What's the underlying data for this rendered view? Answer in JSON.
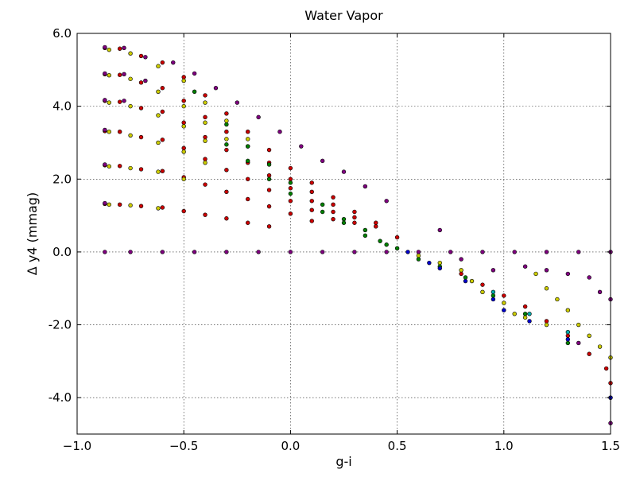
{
  "chart_data": {
    "type": "scatter",
    "title": "Water Vapor",
    "xlabel": "g-i",
    "ylabel": "Δ y4 (mmag)",
    "xlim": [
      -1.0,
      1.5
    ],
    "ylim": [
      -5.0,
      6.0
    ],
    "x_ticks": [
      -1.0,
      -0.5,
      0.0,
      0.5,
      1.0,
      1.5
    ],
    "x_tick_labels": [
      "−1.0",
      "−0.5",
      "0.0",
      "0.5",
      "1.0",
      "1.5"
    ],
    "y_ticks": [
      -4.0,
      -2.0,
      0.0,
      2.0,
      4.0,
      6.0
    ],
    "y_tick_labels": [
      "-4.0",
      "-2.0",
      "0.0",
      "2.0",
      "4.0",
      "6.0"
    ],
    "grid": true,
    "legend": "none",
    "colors": [
      "#800080",
      "#cc0000",
      "#cccc00",
      "#008000",
      "#0000cc",
      "#00aaaa"
    ],
    "series": [
      {
        "color": "#cc0000",
        "points": [
          [
            -0.87,
            5.6
          ],
          [
            -0.8,
            5.58
          ],
          [
            -0.7,
            5.38
          ],
          [
            -0.6,
            5.2
          ],
          [
            -0.5,
            4.8
          ],
          [
            -0.4,
            4.3
          ],
          [
            -0.3,
            3.8
          ],
          [
            -0.2,
            3.3
          ],
          [
            -0.1,
            2.8
          ],
          [
            0.0,
            2.3
          ],
          [
            0.1,
            1.9
          ],
          [
            0.2,
            1.5
          ],
          [
            0.3,
            1.1
          ],
          [
            0.4,
            0.8
          ],
          [
            0.5,
            0.4
          ],
          [
            -0.87,
            4.88
          ],
          [
            -0.8,
            4.86
          ],
          [
            -0.7,
            4.65
          ],
          [
            -0.6,
            4.5
          ],
          [
            -0.5,
            4.15
          ],
          [
            -0.4,
            3.7
          ],
          [
            -0.3,
            3.3
          ],
          [
            -0.2,
            2.9
          ],
          [
            -0.1,
            2.45
          ],
          [
            0.0,
            2.0
          ],
          [
            0.1,
            1.65
          ],
          [
            0.2,
            1.3
          ],
          [
            0.3,
            0.95
          ],
          [
            0.4,
            0.7
          ],
          [
            -0.87,
            4.15
          ],
          [
            -0.8,
            4.12
          ],
          [
            -0.7,
            3.95
          ],
          [
            -0.6,
            3.85
          ],
          [
            -0.5,
            3.55
          ],
          [
            -0.4,
            3.15
          ],
          [
            -0.3,
            2.8
          ],
          [
            -0.2,
            2.45
          ],
          [
            -0.1,
            2.1
          ],
          [
            0.0,
            1.75
          ],
          [
            0.1,
            1.4
          ],
          [
            0.2,
            1.1
          ],
          [
            0.3,
            0.8
          ],
          [
            -0.87,
            3.32
          ],
          [
            -0.8,
            3.3
          ],
          [
            -0.7,
            3.15
          ],
          [
            -0.6,
            3.08
          ],
          [
            -0.5,
            2.85
          ],
          [
            -0.4,
            2.55
          ],
          [
            -0.3,
            2.25
          ],
          [
            -0.2,
            2.0
          ],
          [
            -0.1,
            1.7
          ],
          [
            0.0,
            1.4
          ],
          [
            0.1,
            1.15
          ],
          [
            0.2,
            0.9
          ],
          [
            -0.87,
            2.38
          ],
          [
            -0.8,
            2.36
          ],
          [
            -0.7,
            2.27
          ],
          [
            -0.6,
            2.22
          ],
          [
            -0.5,
            2.05
          ],
          [
            -0.4,
            1.85
          ],
          [
            -0.3,
            1.65
          ],
          [
            -0.2,
            1.45
          ],
          [
            -0.1,
            1.25
          ],
          [
            0.0,
            1.05
          ],
          [
            0.1,
            0.85
          ],
          [
            -0.87,
            1.32
          ],
          [
            -0.8,
            1.3
          ],
          [
            -0.7,
            1.26
          ],
          [
            -0.6,
            1.22
          ],
          [
            -0.5,
            1.12
          ],
          [
            -0.4,
            1.02
          ],
          [
            -0.3,
            0.92
          ],
          [
            -0.2,
            0.8
          ],
          [
            -0.1,
            0.7
          ],
          [
            0.8,
            -0.6
          ],
          [
            0.9,
            -0.9
          ],
          [
            1.0,
            -1.2
          ],
          [
            1.1,
            -1.5
          ],
          [
            1.2,
            -1.9
          ],
          [
            1.3,
            -2.3
          ],
          [
            1.4,
            -2.8
          ],
          [
            1.48,
            -3.2
          ],
          [
            1.5,
            -3.6
          ]
        ]
      },
      {
        "color": "#cccc00",
        "points": [
          [
            -0.85,
            5.55
          ],
          [
            -0.75,
            5.45
          ],
          [
            -0.62,
            5.1
          ],
          [
            -0.5,
            4.7
          ],
          [
            -0.4,
            4.1
          ],
          [
            -0.3,
            3.6
          ],
          [
            -0.2,
            3.1
          ],
          [
            -0.85,
            4.85
          ],
          [
            -0.75,
            4.75
          ],
          [
            -0.62,
            4.4
          ],
          [
            -0.5,
            4.0
          ],
          [
            -0.4,
            3.55
          ],
          [
            -0.3,
            3.1
          ],
          [
            -0.85,
            4.1
          ],
          [
            -0.75,
            4.0
          ],
          [
            -0.62,
            3.75
          ],
          [
            -0.5,
            3.45
          ],
          [
            -0.4,
            3.05
          ],
          [
            -0.85,
            3.3
          ],
          [
            -0.75,
            3.2
          ],
          [
            -0.62,
            3.0
          ],
          [
            -0.5,
            2.75
          ],
          [
            -0.4,
            2.45
          ],
          [
            -0.85,
            2.35
          ],
          [
            -0.75,
            2.3
          ],
          [
            -0.62,
            2.2
          ],
          [
            -0.5,
            2.0
          ],
          [
            -0.85,
            1.3
          ],
          [
            -0.75,
            1.28
          ],
          [
            -0.62,
            1.2
          ],
          [
            0.6,
            -0.1
          ],
          [
            0.7,
            -0.3
          ],
          [
            0.8,
            -0.5
          ],
          [
            0.85,
            -0.8
          ],
          [
            0.9,
            -1.1
          ],
          [
            1.0,
            -1.4
          ],
          [
            1.05,
            -1.7
          ],
          [
            1.15,
            -0.6
          ],
          [
            1.2,
            -1.0
          ],
          [
            1.25,
            -1.3
          ],
          [
            1.3,
            -1.6
          ],
          [
            1.35,
            -2.0
          ],
          [
            1.4,
            -2.3
          ],
          [
            1.45,
            -2.6
          ],
          [
            1.5,
            -2.9
          ],
          [
            1.1,
            -1.8
          ],
          [
            1.2,
            -2.0
          ]
        ]
      },
      {
        "color": "#800080",
        "points": [
          [
            -0.87,
            5.62
          ],
          [
            -0.78,
            5.6
          ],
          [
            -0.68,
            5.35
          ],
          [
            -0.55,
            5.2
          ],
          [
            -0.45,
            4.9
          ],
          [
            -0.35,
            4.5
          ],
          [
            -0.25,
            4.1
          ],
          [
            -0.15,
            3.7
          ],
          [
            -0.05,
            3.3
          ],
          [
            0.05,
            2.9
          ],
          [
            0.15,
            2.5
          ],
          [
            0.25,
            2.2
          ],
          [
            0.35,
            1.8
          ],
          [
            0.45,
            1.4
          ],
          [
            -0.87,
            4.9
          ],
          [
            -0.78,
            4.88
          ],
          [
            -0.68,
            4.7
          ],
          [
            -0.87,
            4.17
          ],
          [
            -0.78,
            4.15
          ],
          [
            -0.87,
            3.35
          ],
          [
            -0.87,
            2.4
          ],
          [
            -0.87,
            1.34
          ],
          [
            0.7,
            0.6
          ],
          [
            0.8,
            -0.2
          ],
          [
            0.95,
            -0.5
          ],
          [
            1.1,
            -0.4
          ],
          [
            1.2,
            -0.5
          ],
          [
            1.3,
            -0.6
          ],
          [
            1.4,
            -0.7
          ],
          [
            1.45,
            -1.1
          ],
          [
            1.5,
            -1.3
          ],
          [
            1.35,
            -2.5
          ],
          [
            1.5,
            -4.0
          ],
          [
            1.5,
            -4.7
          ],
          [
            -0.87,
            0.0
          ],
          [
            -0.75,
            0.0
          ],
          [
            -0.6,
            0.0
          ],
          [
            -0.45,
            0.0
          ],
          [
            -0.3,
            0.0
          ],
          [
            -0.15,
            0.0
          ],
          [
            0.0,
            0.0
          ],
          [
            0.15,
            0.0
          ],
          [
            0.3,
            0.0
          ],
          [
            0.45,
            0.0
          ],
          [
            0.6,
            0.0
          ],
          [
            0.75,
            0.0
          ],
          [
            0.9,
            0.0
          ],
          [
            1.05,
            0.0
          ],
          [
            1.2,
            0.0
          ],
          [
            1.35,
            0.0
          ],
          [
            1.5,
            0.0
          ]
        ]
      },
      {
        "color": "#008000",
        "points": [
          [
            -0.45,
            4.4
          ],
          [
            -0.3,
            3.5
          ],
          [
            -0.2,
            2.9
          ],
          [
            -0.1,
            2.4
          ],
          [
            0.0,
            1.9
          ],
          [
            0.15,
            1.3
          ],
          [
            0.25,
            0.9
          ],
          [
            0.35,
            0.6
          ],
          [
            0.42,
            0.3
          ],
          [
            0.5,
            0.1
          ],
          [
            0.6,
            -0.2
          ],
          [
            0.7,
            -0.4
          ],
          [
            0.82,
            -0.7
          ],
          [
            0.95,
            -1.2
          ],
          [
            1.1,
            -1.7
          ],
          [
            1.3,
            -2.5
          ],
          [
            -0.3,
            2.95
          ],
          [
            -0.2,
            2.5
          ],
          [
            -0.1,
            2.0
          ],
          [
            0.0,
            1.6
          ],
          [
            0.15,
            1.1
          ],
          [
            0.25,
            0.8
          ],
          [
            0.35,
            0.45
          ],
          [
            0.45,
            0.2
          ]
        ]
      },
      {
        "color": "#0000cc",
        "points": [
          [
            0.55,
            0.0
          ],
          [
            0.65,
            -0.3
          ],
          [
            0.7,
            -0.45
          ],
          [
            0.82,
            -0.8
          ],
          [
            0.95,
            -1.3
          ],
          [
            1.0,
            -1.6
          ],
          [
            1.12,
            -1.9
          ],
          [
            1.3,
            -2.4
          ],
          [
            1.5,
            -4.0
          ]
        ]
      },
      {
        "color": "#00aaaa",
        "points": [
          [
            1.3,
            -2.2
          ],
          [
            1.12,
            -1.7
          ],
          [
            0.95,
            -1.1
          ]
        ]
      }
    ]
  }
}
